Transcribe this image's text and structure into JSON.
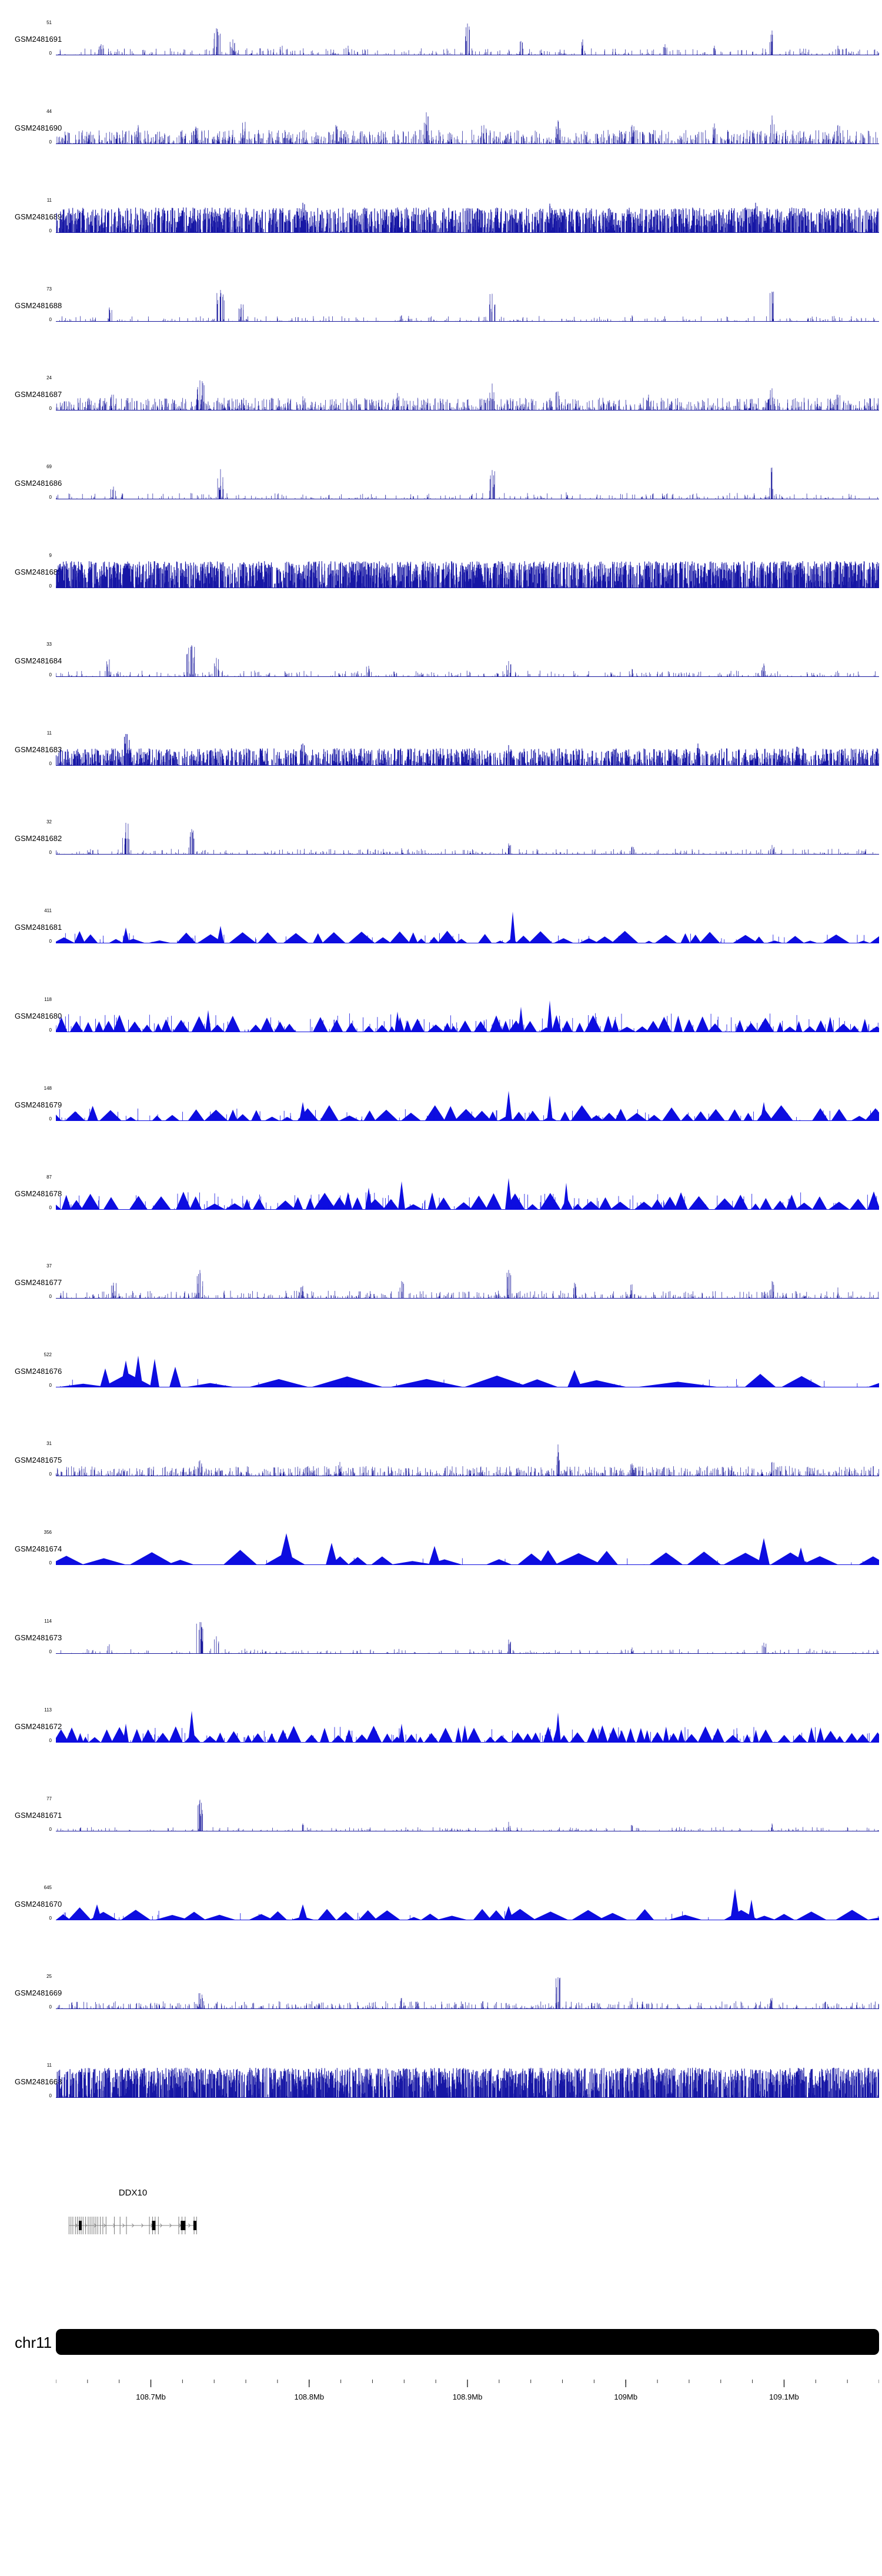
{
  "chromosome": "chr11",
  "chart_data": {
    "type": "area",
    "subtype": "genome-browser-coverage-tracks",
    "title": "",
    "legend": "none",
    "grid": false,
    "chromosome": "chr11",
    "x_axis": {
      "range_mb": [
        108.64,
        109.16
      ],
      "minor_step_mb": 0.02,
      "ticks": [
        {
          "mb": 108.7,
          "label": "108.7Mb"
        },
        {
          "mb": 108.8,
          "label": "108.8Mb"
        },
        {
          "mb": 108.9,
          "label": "108.9Mb"
        },
        {
          "mb": 109.0,
          "label": "109Mb"
        },
        {
          "mb": 109.1,
          "label": "109.1Mb"
        }
      ]
    },
    "gene": {
      "name": "DDX10",
      "start_frac": 0.016,
      "end_frac": 0.171,
      "strand": "right",
      "exon_ticks": [
        0,
        0.015,
        0.03,
        0.05,
        0.065,
        0.08,
        0.095,
        0.11,
        0.13,
        0.15,
        0.165,
        0.18,
        0.195,
        0.21,
        0.225,
        0.245,
        0.265,
        0.29,
        0.355,
        0.4,
        0.45,
        0.63,
        0.655,
        0.675,
        0.7,
        0.86,
        0.885,
        0.91,
        0.98,
        1.0
      ],
      "black_exons": [
        [
          0.088,
          5
        ],
        [
          0.664,
          6
        ],
        [
          0.894,
          8
        ],
        [
          0.986,
          5
        ]
      ]
    },
    "colors": {
      "spike": "#16169B",
      "dense": "#1616A5",
      "mountain": "#0D0DE0",
      "gene_line": "#8a8a8a",
      "gene_exon": "#777777",
      "gene_black": "#000000",
      "ideogram": "#000000"
    },
    "tracks": [
      {
        "label": "GSM2481691",
        "ymax": 51,
        "ymin": 0,
        "style": "spike",
        "seed": 1,
        "density": 750,
        "amp": 0.22,
        "falloff": 3.4,
        "peaks": [
          [
            0.055,
            0.35,
            6,
            5
          ],
          [
            0.195,
            0.85,
            7,
            9
          ],
          [
            0.215,
            0.5,
            5,
            5
          ],
          [
            0.275,
            0.3,
            4,
            4
          ],
          [
            0.355,
            0.3,
            4,
            4
          ],
          [
            0.5,
            1.0,
            4,
            6
          ],
          [
            0.565,
            0.45,
            4,
            4
          ],
          [
            0.64,
            0.5,
            4,
            4
          ],
          [
            0.74,
            0.35,
            4,
            4
          ],
          [
            0.8,
            0.3,
            3,
            3
          ],
          [
            0.87,
            0.78,
            4,
            5
          ],
          [
            0.95,
            0.3,
            3,
            3
          ]
        ]
      },
      {
        "label": "GSM2481690",
        "ymax": 44,
        "ymin": 0,
        "style": "spike",
        "seed": 2,
        "density": 1600,
        "amp": 0.45,
        "falloff": 2.1,
        "peaks": [
          [
            0.1,
            0.6,
            5,
            5
          ],
          [
            0.17,
            0.55,
            5,
            5
          ],
          [
            0.23,
            0.7,
            5,
            5
          ],
          [
            0.34,
            0.6,
            5,
            5
          ],
          [
            0.45,
            1.0,
            4,
            5
          ],
          [
            0.52,
            0.6,
            4,
            4
          ],
          [
            0.61,
            0.75,
            4,
            5
          ],
          [
            0.7,
            0.6,
            4,
            4
          ],
          [
            0.8,
            0.65,
            4,
            4
          ],
          [
            0.87,
            0.9,
            4,
            5
          ],
          [
            0.95,
            0.6,
            4,
            4
          ]
        ]
      },
      {
        "label": "GSM2481689",
        "ymax": 11,
        "ymin": 0,
        "style": "dense",
        "seed": 3,
        "density": 2400,
        "amp": 0.8,
        "falloff": 1.1,
        "peaks": [
          [
            0.3,
            0.95,
            5,
            6
          ],
          [
            0.6,
            0.92,
            5,
            6
          ],
          [
            0.85,
            0.95,
            5,
            6
          ]
        ]
      },
      {
        "label": "GSM2481688",
        "ymax": 73,
        "ymin": 0,
        "style": "spike",
        "seed": 4,
        "density": 620,
        "amp": 0.18,
        "falloff": 4.0,
        "peaks": [
          [
            0.065,
            0.45,
            5,
            5
          ],
          [
            0.2,
            1.0,
            8,
            12
          ],
          [
            0.225,
            0.55,
            5,
            5
          ],
          [
            0.42,
            0.2,
            4,
            3
          ],
          [
            0.53,
            0.88,
            5,
            8
          ],
          [
            0.7,
            0.2,
            3,
            3
          ],
          [
            0.87,
            0.95,
            4,
            6
          ]
        ]
      },
      {
        "label": "GSM2481687",
        "ymax": 24,
        "ymin": 0,
        "style": "spike",
        "seed": 5,
        "density": 1500,
        "amp": 0.4,
        "falloff": 2.2,
        "peaks": [
          [
            0.07,
            0.5,
            5,
            5
          ],
          [
            0.175,
            0.95,
            8,
            10
          ],
          [
            0.3,
            0.45,
            4,
            4
          ],
          [
            0.415,
            0.55,
            4,
            4
          ],
          [
            0.53,
            0.85,
            5,
            6
          ],
          [
            0.61,
            0.6,
            4,
            4
          ],
          [
            0.72,
            0.5,
            4,
            4
          ],
          [
            0.87,
            0.7,
            4,
            5
          ],
          [
            0.95,
            0.5,
            4,
            4
          ]
        ]
      },
      {
        "label": "GSM2481686",
        "ymax": 69,
        "ymin": 0,
        "style": "spike",
        "seed": 6,
        "density": 680,
        "amp": 0.2,
        "falloff": 3.8,
        "peaks": [
          [
            0.07,
            0.4,
            5,
            4
          ],
          [
            0.2,
            0.95,
            7,
            10
          ],
          [
            0.53,
            0.92,
            5,
            7
          ],
          [
            0.62,
            0.22,
            3,
            3
          ],
          [
            0.87,
            1.0,
            4,
            6
          ]
        ]
      },
      {
        "label": "GSM2481685",
        "ymax": 9,
        "ymin": 0,
        "style": "dense",
        "seed": 7,
        "density": 2900,
        "amp": 0.85,
        "falloff": 0.95,
        "peaks": []
      },
      {
        "label": "GSM2481684",
        "ymax": 33,
        "ymin": 0,
        "style": "spike",
        "seed": 8,
        "density": 750,
        "amp": 0.2,
        "falloff": 3.5,
        "peaks": [
          [
            0.065,
            0.55,
            5,
            5
          ],
          [
            0.165,
            1.0,
            9,
            14
          ],
          [
            0.195,
            0.6,
            5,
            5
          ],
          [
            0.38,
            0.35,
            4,
            4
          ],
          [
            0.55,
            0.5,
            4,
            5
          ],
          [
            0.7,
            0.25,
            3,
            3
          ],
          [
            0.86,
            0.42,
            4,
            4
          ]
        ]
      },
      {
        "label": "GSM2481683",
        "ymax": 11,
        "ymin": 0,
        "style": "dense",
        "seed": 9,
        "density": 2100,
        "amp": 0.55,
        "falloff": 1.5,
        "peaks": [
          [
            0.085,
            1.0,
            6,
            9
          ],
          [
            0.3,
            0.7,
            4,
            5
          ],
          [
            0.55,
            0.65,
            4,
            5
          ],
          [
            0.78,
            0.7,
            4,
            5
          ],
          [
            0.9,
            0.6,
            4,
            4
          ]
        ]
      },
      {
        "label": "GSM2481682",
        "ymax": 32,
        "ymin": 0,
        "style": "spike",
        "seed": 10,
        "density": 720,
        "amp": 0.18,
        "falloff": 3.6,
        "peaks": [
          [
            0.085,
            1.0,
            6,
            9
          ],
          [
            0.165,
            0.8,
            6,
            8
          ],
          [
            0.42,
            0.2,
            3,
            3
          ],
          [
            0.55,
            0.35,
            4,
            4
          ],
          [
            0.7,
            0.25,
            3,
            3
          ],
          [
            0.87,
            0.3,
            4,
            4
          ]
        ]
      },
      {
        "label": "GSM2481681",
        "ymax": 411,
        "ymin": 0,
        "style": "mountain",
        "seed": 11,
        "mw": [
          16,
          48
        ],
        "mh": [
          0.08,
          0.4
        ],
        "gap": 0.18,
        "peaks": [
          [
            0.085,
            0.5,
            6
          ],
          [
            0.2,
            0.55,
            6
          ],
          [
            0.555,
            1.0,
            5
          ]
        ],
        "spikes": {
          "density": 120,
          "amp": 0.35
        }
      },
      {
        "label": "GSM2481680",
        "ymax": 118,
        "ymin": 0,
        "style": "mountain",
        "seed": 12,
        "mw": [
          11,
          32
        ],
        "mh": [
          0.15,
          0.55
        ],
        "gap": 0.08,
        "peaks": [
          [
            0.185,
            0.7,
            5
          ],
          [
            0.415,
            0.65,
            5
          ],
          [
            0.565,
            0.8,
            5
          ],
          [
            0.6,
            1.0,
            5
          ]
        ],
        "spikes": {
          "density": 260,
          "amp": 0.6
        }
      },
      {
        "label": "GSM2481679",
        "ymax": 148,
        "ymin": 0,
        "style": "mountain",
        "seed": 13,
        "mw": [
          15,
          42
        ],
        "mh": [
          0.12,
          0.5
        ],
        "gap": 0.14,
        "peaks": [
          [
            0.3,
            0.6,
            6
          ],
          [
            0.55,
            0.95,
            6
          ],
          [
            0.6,
            0.8,
            5
          ],
          [
            0.86,
            0.6,
            6
          ]
        ],
        "spikes": {
          "density": 150,
          "amp": 0.4
        }
      },
      {
        "label": "GSM2481678",
        "ymax": 87,
        "ymin": 0,
        "style": "mountain",
        "seed": 14,
        "mw": [
          14,
          38
        ],
        "mh": [
          0.15,
          0.58
        ],
        "gap": 0.1,
        "peaks": [
          [
            0.38,
            0.7,
            6
          ],
          [
            0.42,
            0.9,
            6
          ],
          [
            0.55,
            1.0,
            6
          ],
          [
            0.62,
            0.85,
            5
          ]
        ],
        "spikes": {
          "density": 220,
          "amp": 0.55
        }
      },
      {
        "label": "GSM2481677",
        "ymax": 37,
        "ymin": 0,
        "style": "spike",
        "seed": 15,
        "density": 950,
        "amp": 0.25,
        "falloff": 3.0,
        "peaks": [
          [
            0.07,
            0.5,
            5,
            5
          ],
          [
            0.175,
            0.9,
            6,
            8
          ],
          [
            0.3,
            0.4,
            4,
            4
          ],
          [
            0.42,
            0.55,
            4,
            4
          ],
          [
            0.55,
            0.9,
            4,
            6
          ],
          [
            0.63,
            0.5,
            4,
            4
          ],
          [
            0.7,
            0.45,
            4,
            4
          ],
          [
            0.87,
            0.55,
            4,
            4
          ],
          [
            0.95,
            0.35,
            3,
            3
          ]
        ]
      },
      {
        "label": "GSM2481676",
        "ymax": 522,
        "ymin": 0,
        "style": "mountain",
        "seed": 16,
        "mw": [
          50,
          150
        ],
        "mh": [
          0.1,
          0.45
        ],
        "gap": 0.15,
        "peaks": [
          [
            0.06,
            0.6,
            9
          ],
          [
            0.085,
            0.85,
            9
          ],
          [
            0.1,
            1.0,
            8
          ],
          [
            0.12,
            0.9,
            8
          ],
          [
            0.145,
            0.65,
            10
          ],
          [
            0.63,
            0.55,
            12
          ]
        ],
        "spikes": {
          "density": 60,
          "amp": 0.3
        }
      },
      {
        "label": "GSM2481675",
        "ymax": 31,
        "ymin": 0,
        "style": "spike",
        "seed": 17,
        "density": 1400,
        "amp": 0.32,
        "falloff": 2.4,
        "peaks": [
          [
            0.175,
            0.5,
            5,
            5
          ],
          [
            0.345,
            0.45,
            4,
            4
          ],
          [
            0.61,
            1.0,
            4,
            6
          ],
          [
            0.7,
            0.4,
            4,
            4
          ],
          [
            0.87,
            0.45,
            4,
            4
          ]
        ]
      },
      {
        "label": "GSM2481674",
        "ymax": 356,
        "ymin": 0,
        "style": "mountain",
        "seed": 18,
        "mw": [
          28,
          85
        ],
        "mh": [
          0.12,
          0.5
        ],
        "gap": 0.16,
        "peaks": [
          [
            0.28,
            1.0,
            13
          ],
          [
            0.335,
            0.7,
            10
          ],
          [
            0.46,
            0.6,
            10
          ],
          [
            0.86,
            0.85,
            10
          ],
          [
            0.905,
            0.55,
            8
          ]
        ],
        "spikes": {
          "density": 40,
          "amp": 0.25
        }
      },
      {
        "label": "GSM2481673",
        "ymax": 114,
        "ymin": 0,
        "style": "spike",
        "seed": 19,
        "density": 620,
        "amp": 0.16,
        "falloff": 4.0,
        "peaks": [
          [
            0.065,
            0.3,
            4,
            4
          ],
          [
            0.175,
            1.0,
            7,
            10
          ],
          [
            0.195,
            0.55,
            4,
            4
          ],
          [
            0.55,
            0.45,
            4,
            5
          ],
          [
            0.7,
            0.2,
            3,
            3
          ],
          [
            0.86,
            0.35,
            4,
            4
          ]
        ]
      },
      {
        "label": "GSM2481672",
        "ymax": 113,
        "ymin": 0,
        "style": "mountain",
        "seed": 20,
        "mw": [
          10,
          28
        ],
        "mh": [
          0.15,
          0.55
        ],
        "gap": 0.08,
        "peaks": [
          [
            0.085,
            0.6,
            5
          ],
          [
            0.165,
            1.0,
            6
          ],
          [
            0.42,
            0.6,
            5
          ],
          [
            0.61,
            0.95,
            5
          ]
        ],
        "spikes": {
          "density": 200,
          "amp": 0.5
        }
      },
      {
        "label": "GSM2481671",
        "ymax": 77,
        "ymin": 0,
        "style": "spike",
        "seed": 21,
        "density": 700,
        "amp": 0.14,
        "falloff": 4.2,
        "peaks": [
          [
            0.175,
            1.0,
            5,
            8
          ],
          [
            0.3,
            0.25,
            3,
            3
          ],
          [
            0.55,
            0.3,
            4,
            4
          ],
          [
            0.7,
            0.2,
            3,
            3
          ],
          [
            0.87,
            0.25,
            3,
            3
          ]
        ]
      },
      {
        "label": "GSM2481670",
        "ymax": 645,
        "ymin": 0,
        "style": "mountain",
        "seed": 22,
        "mw": [
          24,
          65
        ],
        "mh": [
          0.1,
          0.42
        ],
        "gap": 0.15,
        "peaks": [
          [
            0.05,
            0.5,
            8
          ],
          [
            0.3,
            0.5,
            8
          ],
          [
            0.55,
            0.45,
            8
          ],
          [
            0.825,
            1.0,
            8
          ],
          [
            0.845,
            0.65,
            6
          ]
        ],
        "spikes": {
          "density": 60,
          "amp": 0.3
        }
      },
      {
        "label": "GSM2481669",
        "ymax": 25,
        "ymin": 0,
        "style": "spike",
        "seed": 23,
        "density": 1050,
        "amp": 0.25,
        "falloff": 3.0,
        "peaks": [
          [
            0.175,
            0.5,
            5,
            5
          ],
          [
            0.42,
            0.35,
            4,
            4
          ],
          [
            0.61,
            1.0,
            4,
            6
          ],
          [
            0.7,
            0.35,
            4,
            4
          ],
          [
            0.87,
            0.35,
            4,
            4
          ]
        ]
      },
      {
        "label": "GSM2481668",
        "ymax": 11,
        "ymin": 0,
        "style": "dense",
        "seed": 24,
        "density": 2700,
        "amp": 0.95,
        "falloff": 0.8,
        "peaks": []
      }
    ]
  }
}
